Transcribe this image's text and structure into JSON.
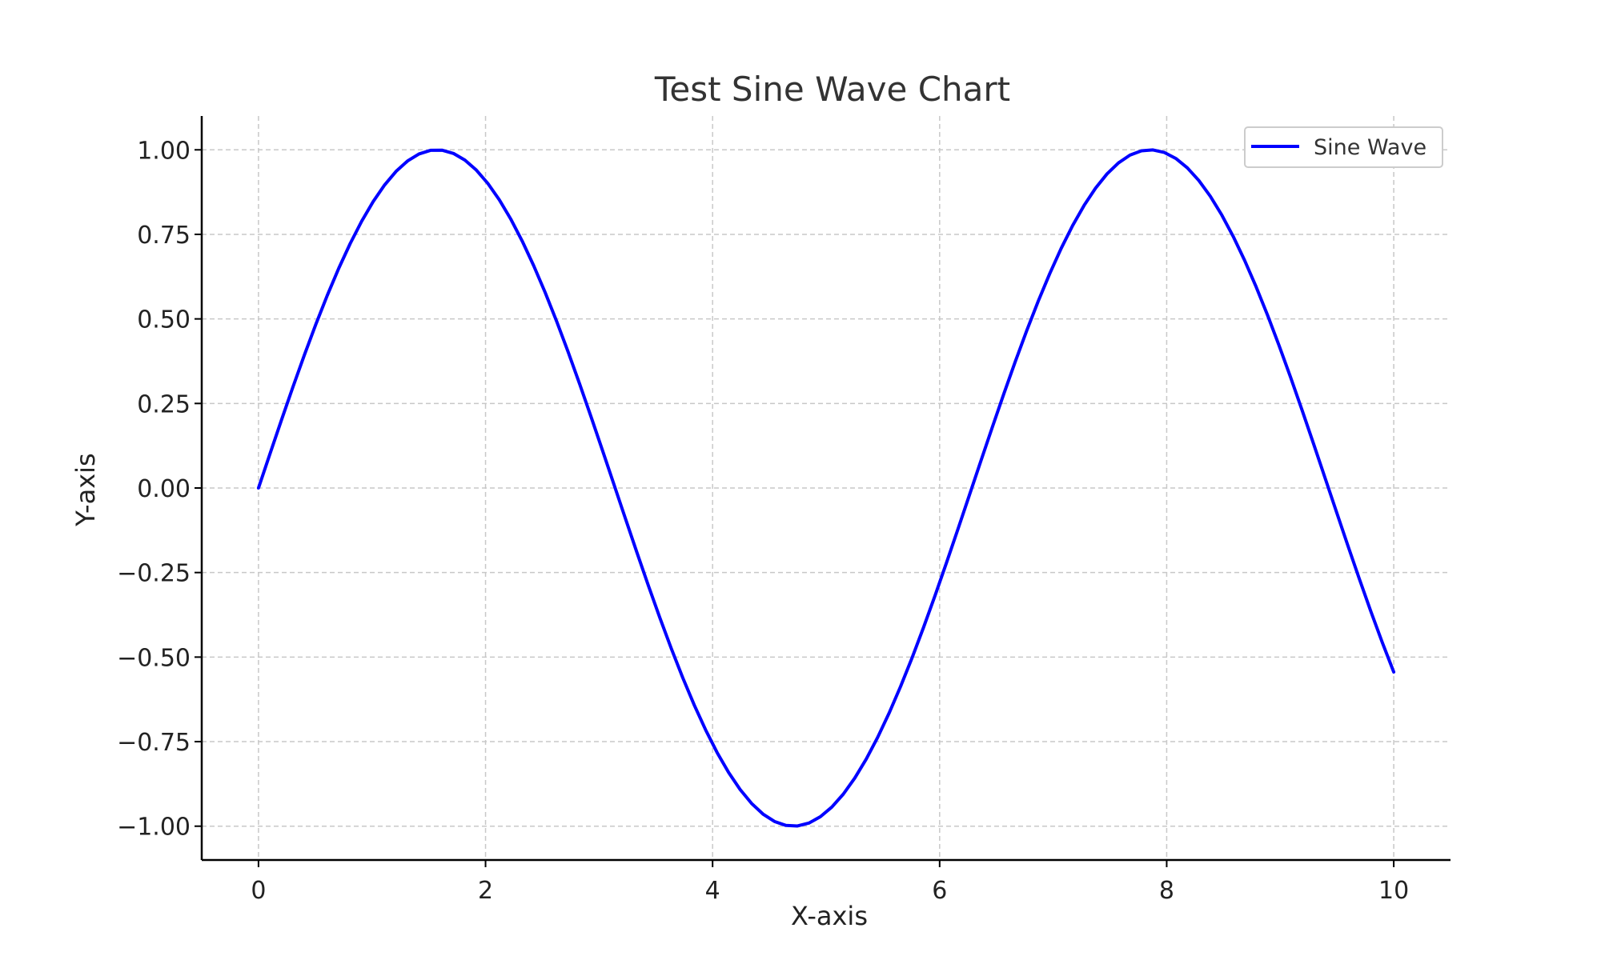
{
  "chart_data": {
    "type": "line",
    "title": "Test Sine Wave Chart",
    "xlabel": "X-axis",
    "ylabel": "Y-axis",
    "xlim": [
      -0.5,
      10.5
    ],
    "ylim": [
      -1.1,
      1.1
    ],
    "x_ticks": [
      0,
      2,
      4,
      6,
      8,
      10
    ],
    "x_tick_labels": [
      "0",
      "2",
      "4",
      "6",
      "8",
      "10"
    ],
    "y_ticks": [
      1.0,
      0.75,
      0.5,
      0.25,
      0.0,
      -0.25,
      -0.5,
      -0.75,
      -1.0
    ],
    "y_tick_labels": [
      "1.00",
      "0.75",
      "0.50",
      "0.25",
      "0.00",
      "−0.25",
      "−0.50",
      "−0.75",
      "−1.00"
    ],
    "grid": true,
    "legend_position": "top-right",
    "series": [
      {
        "name": "Sine Wave",
        "color": "#0000ff",
        "function": "sin(x)",
        "x_range": [
          0,
          10
        ],
        "num_points": 100
      }
    ]
  }
}
